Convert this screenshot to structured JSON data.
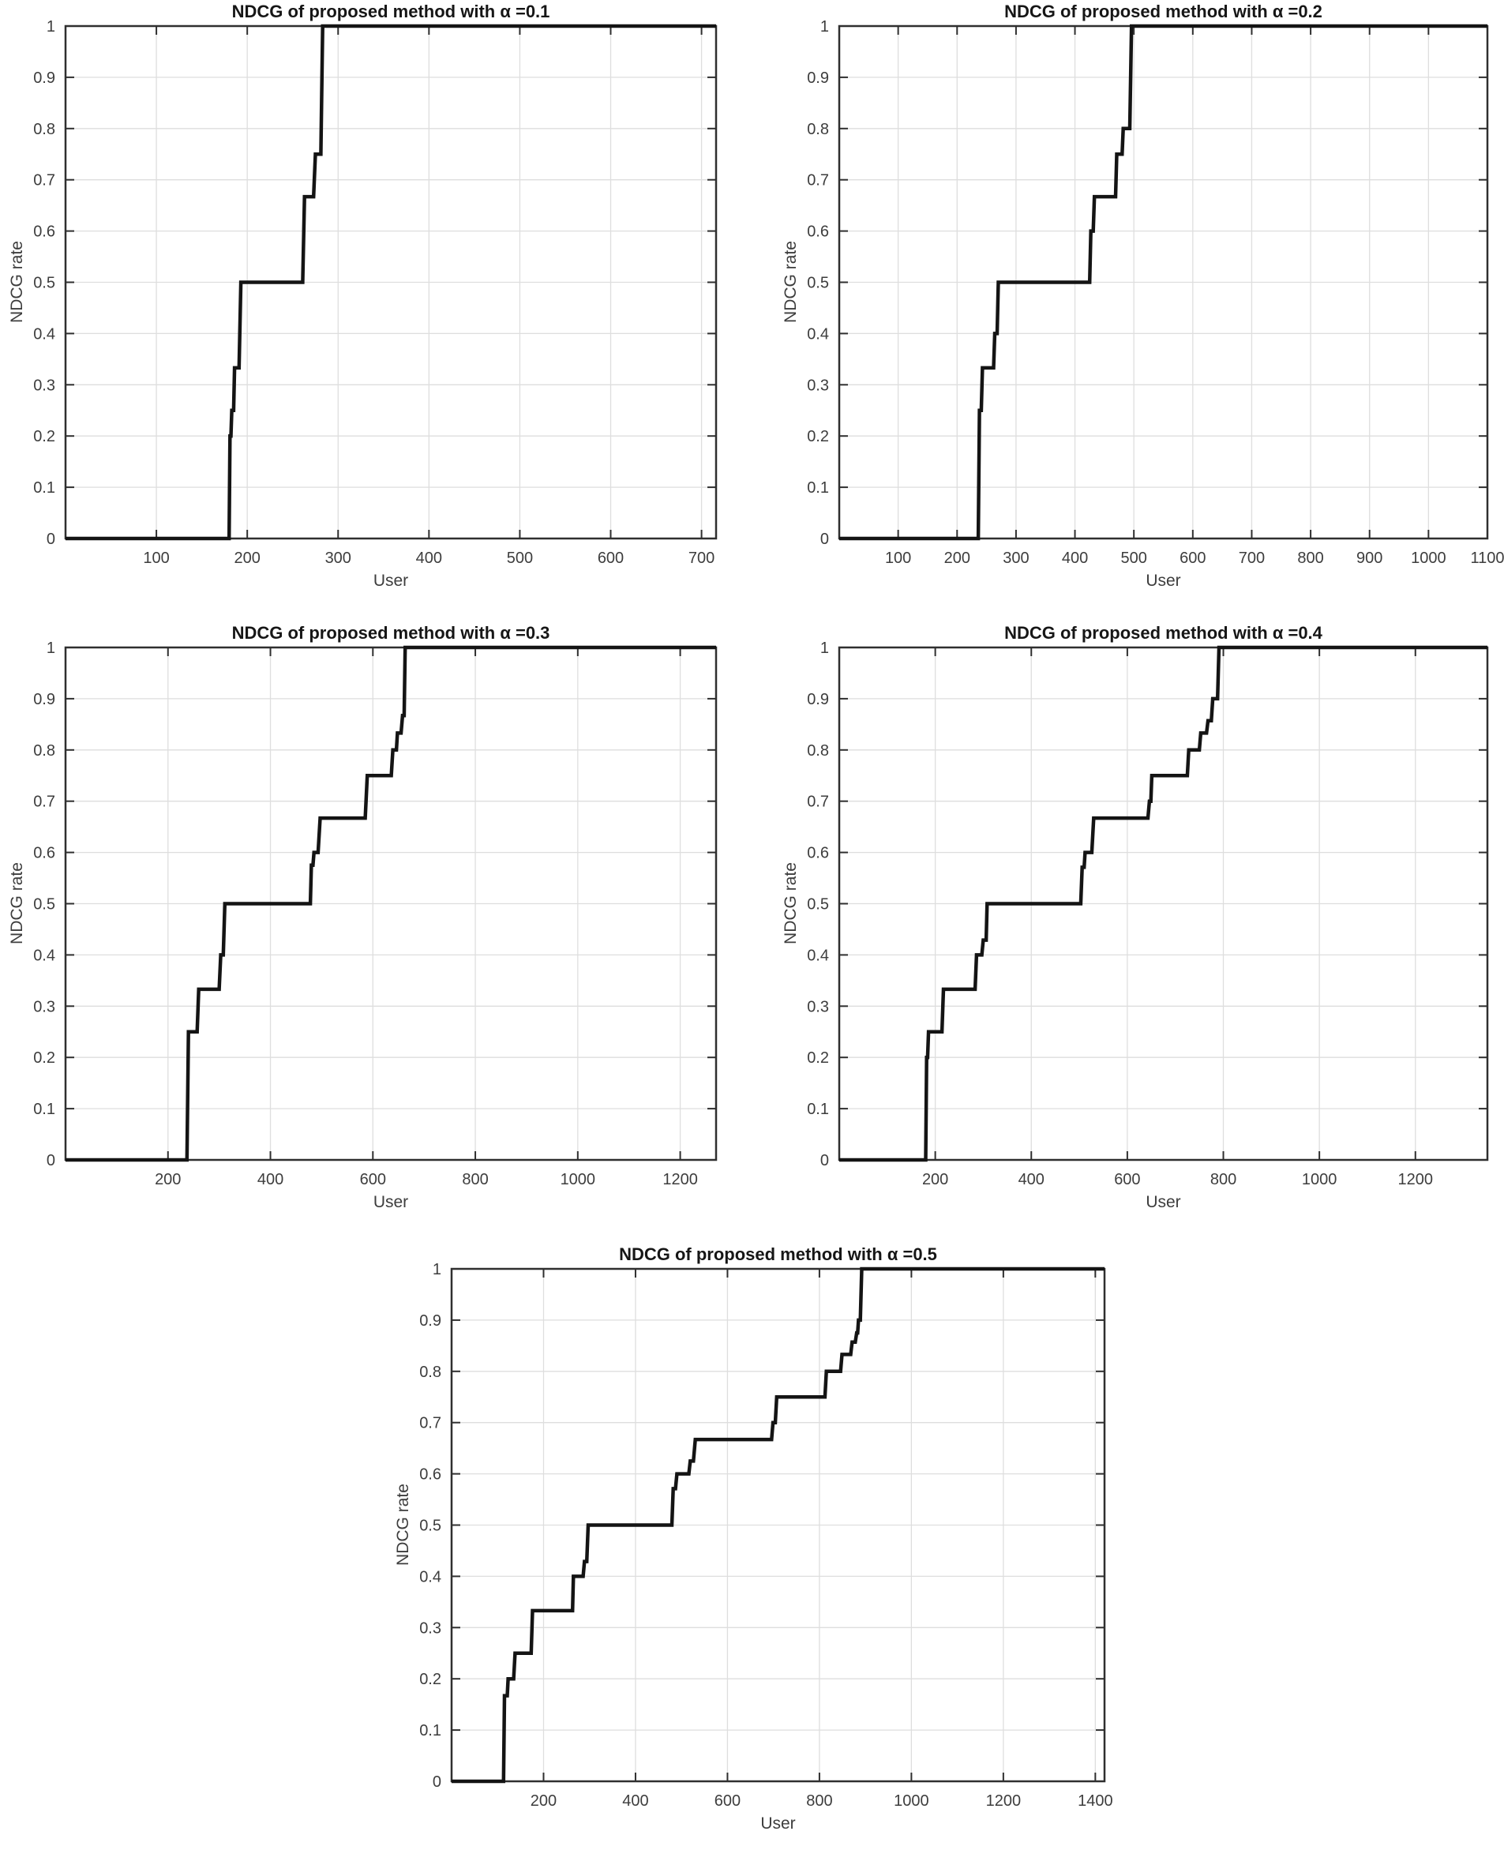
{
  "figure": {
    "background": "#ffffff",
    "line_color": "#141414",
    "grid_color": "#dedede",
    "axis_color": "#2f2f2f",
    "tick_label_color": "#3d3d3d",
    "title_color": "#161616"
  },
  "chart_data": [
    {
      "type": "line",
      "step": true,
      "title": "NDCG of proposed method with α =0.1",
      "xlabel": "User",
      "ylabel": "NDCG rate",
      "xlim": [
        0,
        716
      ],
      "ylim": [
        0,
        1
      ],
      "xticks": [
        100,
        200,
        300,
        400,
        500,
        600,
        700
      ],
      "yticks": [
        0,
        0.1,
        0.2,
        0.3,
        0.4,
        0.5,
        0.6,
        0.7,
        0.8,
        0.9,
        1
      ],
      "grid": true,
      "legend": "none",
      "points": [
        [
          0,
          0
        ],
        [
          180,
          0
        ],
        [
          181,
          0.2
        ],
        [
          182,
          0.2
        ],
        [
          183,
          0.25
        ],
        [
          185,
          0.25
        ],
        [
          186,
          0.333
        ],
        [
          191,
          0.333
        ],
        [
          193,
          0.5
        ],
        [
          261,
          0.5
        ],
        [
          263,
          0.667
        ],
        [
          273,
          0.667
        ],
        [
          275,
          0.75
        ],
        [
          281,
          0.75
        ],
        [
          283,
          1
        ],
        [
          716,
          1
        ]
      ]
    },
    {
      "type": "line",
      "step": true,
      "title": "NDCG of proposed method with α =0.2",
      "xlabel": "User",
      "ylabel": "NDCG rate",
      "xlim": [
        0,
        1100
      ],
      "ylim": [
        0,
        1
      ],
      "xticks": [
        100,
        200,
        300,
        400,
        500,
        600,
        700,
        800,
        900,
        1000,
        1100
      ],
      "yticks": [
        0,
        0.1,
        0.2,
        0.3,
        0.4,
        0.5,
        0.6,
        0.7,
        0.8,
        0.9,
        1
      ],
      "grid": true,
      "legend": "none",
      "points": [
        [
          0,
          0
        ],
        [
          236,
          0
        ],
        [
          238,
          0.25
        ],
        [
          241,
          0.25
        ],
        [
          243,
          0.333
        ],
        [
          262,
          0.333
        ],
        [
          264,
          0.4
        ],
        [
          268,
          0.4
        ],
        [
          270,
          0.5
        ],
        [
          425,
          0.5
        ],
        [
          427,
          0.6
        ],
        [
          431,
          0.6
        ],
        [
          433,
          0.667
        ],
        [
          469,
          0.667
        ],
        [
          471,
          0.75
        ],
        [
          480,
          0.75
        ],
        [
          482,
          0.8
        ],
        [
          493,
          0.8
        ],
        [
          496,
          1
        ],
        [
          1100,
          1
        ]
      ]
    },
    {
      "type": "line",
      "step": true,
      "title": "NDCG of proposed method with α =0.3",
      "xlabel": "User",
      "ylabel": "NDCG rate",
      "xlim": [
        0,
        1270
      ],
      "ylim": [
        0,
        1
      ],
      "xticks": [
        200,
        400,
        600,
        800,
        1000,
        1200
      ],
      "yticks": [
        0,
        0.1,
        0.2,
        0.3,
        0.4,
        0.5,
        0.6,
        0.7,
        0.8,
        0.9,
        1
      ],
      "grid": true,
      "legend": "none",
      "points": [
        [
          0,
          0
        ],
        [
          237,
          0
        ],
        [
          240,
          0.25
        ],
        [
          257,
          0.25
        ],
        [
          260,
          0.333
        ],
        [
          300,
          0.333
        ],
        [
          303,
          0.4
        ],
        [
          308,
          0.4
        ],
        [
          311,
          0.5
        ],
        [
          478,
          0.5
        ],
        [
          480,
          0.575
        ],
        [
          483,
          0.575
        ],
        [
          485,
          0.6
        ],
        [
          493,
          0.6
        ],
        [
          497,
          0.667
        ],
        [
          585,
          0.667
        ],
        [
          589,
          0.75
        ],
        [
          636,
          0.75
        ],
        [
          639,
          0.8
        ],
        [
          646,
          0.8
        ],
        [
          648,
          0.833
        ],
        [
          655,
          0.833
        ],
        [
          658,
          0.867
        ],
        [
          661,
          0.867
        ],
        [
          663,
          1
        ],
        [
          1270,
          1
        ]
      ]
    },
    {
      "type": "line",
      "step": true,
      "title": "NDCG of proposed method with α =0.4",
      "xlabel": "User",
      "ylabel": "NDCG rate",
      "xlim": [
        0,
        1350
      ],
      "ylim": [
        0,
        1
      ],
      "xticks": [
        200,
        400,
        600,
        800,
        1000,
        1200
      ],
      "yticks": [
        0,
        0.1,
        0.2,
        0.3,
        0.4,
        0.5,
        0.6,
        0.7,
        0.8,
        0.9,
        1
      ],
      "grid": true,
      "legend": "none",
      "points": [
        [
          0,
          0
        ],
        [
          180,
          0
        ],
        [
          182,
          0.2
        ],
        [
          184,
          0.2
        ],
        [
          186,
          0.25
        ],
        [
          214,
          0.25
        ],
        [
          217,
          0.333
        ],
        [
          283,
          0.333
        ],
        [
          286,
          0.4
        ],
        [
          297,
          0.4
        ],
        [
          300,
          0.429
        ],
        [
          306,
          0.429
        ],
        [
          308,
          0.5
        ],
        [
          503,
          0.5
        ],
        [
          506,
          0.571
        ],
        [
          510,
          0.571
        ],
        [
          512,
          0.6
        ],
        [
          526,
          0.6
        ],
        [
          530,
          0.667
        ],
        [
          643,
          0.667
        ],
        [
          646,
          0.7
        ],
        [
          649,
          0.7
        ],
        [
          651,
          0.75
        ],
        [
          725,
          0.75
        ],
        [
          728,
          0.8
        ],
        [
          750,
          0.8
        ],
        [
          753,
          0.833
        ],
        [
          765,
          0.833
        ],
        [
          768,
          0.857
        ],
        [
          775,
          0.857
        ],
        [
          778,
          0.9
        ],
        [
          788,
          0.9
        ],
        [
          791,
          1
        ],
        [
          1350,
          1
        ]
      ]
    },
    {
      "type": "line",
      "step": true,
      "title": "NDCG of proposed method with α =0.5",
      "xlabel": "User",
      "ylabel": "NDCG rate",
      "xlim": [
        0,
        1420
      ],
      "ylim": [
        0,
        1
      ],
      "xticks": [
        200,
        400,
        600,
        800,
        1000,
        1200,
        1400
      ],
      "yticks": [
        0,
        0.1,
        0.2,
        0.3,
        0.4,
        0.5,
        0.6,
        0.7,
        0.8,
        0.9,
        1
      ],
      "grid": true,
      "legend": "none",
      "points": [
        [
          0,
          0
        ],
        [
          113,
          0
        ],
        [
          115,
          0.167
        ],
        [
          121,
          0.167
        ],
        [
          123,
          0.2
        ],
        [
          135,
          0.2
        ],
        [
          138,
          0.25
        ],
        [
          173,
          0.25
        ],
        [
          176,
          0.333
        ],
        [
          263,
          0.333
        ],
        [
          265,
          0.4
        ],
        [
          286,
          0.4
        ],
        [
          289,
          0.429
        ],
        [
          294,
          0.429
        ],
        [
          297,
          0.5
        ],
        [
          479,
          0.5
        ],
        [
          482,
          0.571
        ],
        [
          487,
          0.571
        ],
        [
          490,
          0.6
        ],
        [
          516,
          0.6
        ],
        [
          519,
          0.625
        ],
        [
          526,
          0.625
        ],
        [
          530,
          0.667
        ],
        [
          696,
          0.667
        ],
        [
          699,
          0.7
        ],
        [
          704,
          0.7
        ],
        [
          707,
          0.75
        ],
        [
          812,
          0.75
        ],
        [
          815,
          0.8
        ],
        [
          846,
          0.8
        ],
        [
          849,
          0.833
        ],
        [
          868,
          0.833
        ],
        [
          871,
          0.857
        ],
        [
          878,
          0.857
        ],
        [
          881,
          0.875
        ],
        [
          883,
          0.875
        ],
        [
          885,
          0.9
        ],
        [
          889,
          0.9
        ],
        [
          892,
          1
        ],
        [
          1420,
          1
        ]
      ]
    }
  ]
}
